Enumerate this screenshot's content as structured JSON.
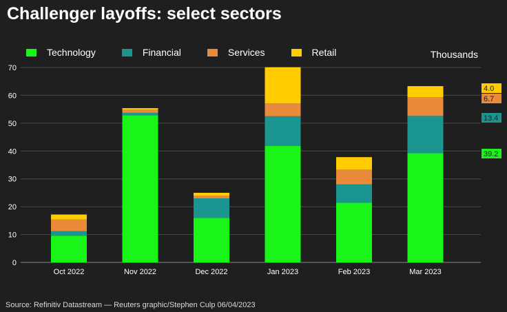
{
  "title": "Challenger layoffs: select sectors",
  "unit": "Thousands",
  "source": "Source: Refinitiv Datastream — Reuters graphic/Stephen Culp 06/04/2023",
  "chart_data": {
    "type": "bar",
    "stacked": true,
    "categories": [
      "Oct 2022",
      "Nov 2022",
      "Dec 2022",
      "Jan 2023",
      "Feb 2023",
      "Mar 2023"
    ],
    "series": [
      {
        "name": "Technology",
        "color": "#19f519",
        "values": [
          9.6,
          52.8,
          16.0,
          41.8,
          21.4,
          39.2
        ]
      },
      {
        "name": "Financial",
        "color": "#1a9590",
        "values": [
          1.6,
          0.9,
          7.0,
          10.7,
          6.6,
          13.4
        ]
      },
      {
        "name": "Services",
        "color": "#e98b3a",
        "values": [
          4.2,
          1.2,
          0.9,
          4.6,
          5.3,
          6.7
        ]
      },
      {
        "name": "Retail",
        "color": "#ffcc00",
        "values": [
          1.8,
          0.5,
          1.1,
          13.0,
          4.5,
          4.0
        ]
      }
    ],
    "end_labels": [
      {
        "series": "Retail",
        "text": "4.0"
      },
      {
        "series": "Services",
        "text": "6.7"
      },
      {
        "series": "Financial",
        "text": "13.4"
      },
      {
        "series": "Technology",
        "text": "39.2"
      }
    ],
    "yticks": [
      0,
      10,
      20,
      30,
      40,
      50,
      60,
      70
    ],
    "ylim": [
      0,
      70
    ],
    "grid": true,
    "legend": "top-left"
  }
}
